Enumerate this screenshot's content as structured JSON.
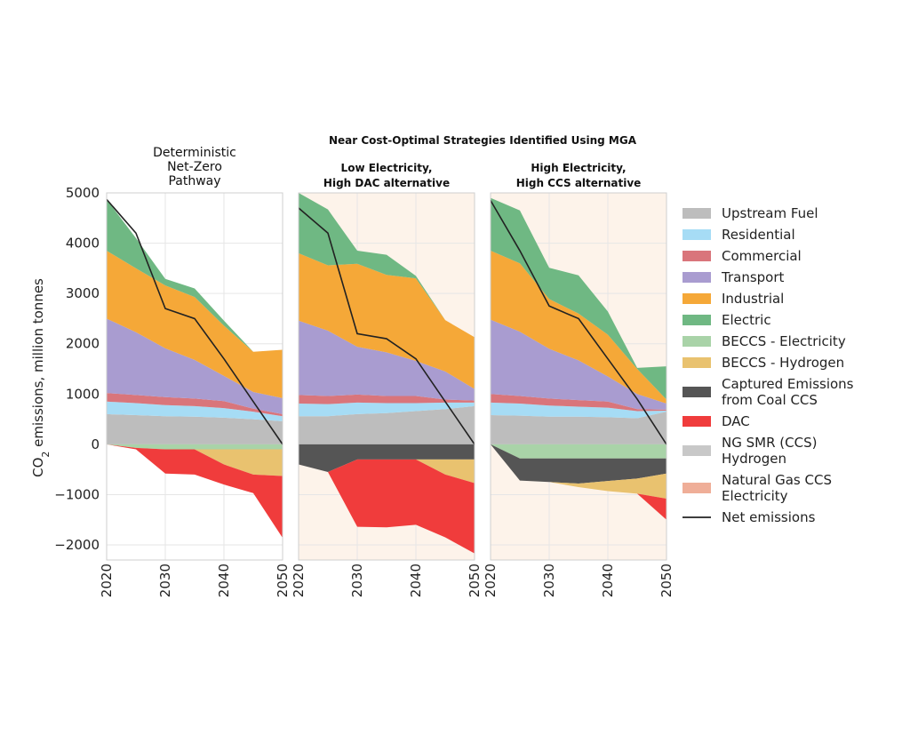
{
  "chart_data": {
    "type": "area",
    "supertitle": "Near Cost-Optimal Strategies Identified Using MGA",
    "ylabel": "CO2 emissions, million tonnes",
    "ylim": [
      -2300,
      5000
    ],
    "yticks": [
      5000,
      4000,
      3000,
      2000,
      1000,
      0,
      -1000,
      -2000
    ],
    "ytick_labels": [
      "5000",
      "4000",
      "3000",
      "2000",
      "1000",
      "0",
      "−1000",
      "−2000"
    ],
    "x": [
      2020,
      2025,
      2030,
      2035,
      2040,
      2045,
      2050
    ],
    "xticks": [
      2020,
      2030,
      2040,
      2050
    ],
    "xtick_labels": [
      "2020",
      "2030",
      "2040",
      "2050"
    ],
    "grid": true,
    "legend_position": "right",
    "colors": {
      "Upstream Fuel": "#bdbdbd",
      "Residential": "#a6dcf5",
      "Commercial": "#d9757b",
      "Transport": "#a99cd0",
      "Industrial": "#f5a838",
      "Electric": "#6fb883",
      "BECCS - Electricity": "#a9d3a8",
      "BECCS - Hydrogen": "#e9c26f",
      "Captured Emissions from Coal CCS": "#555555",
      "DAC": "#f03c3c",
      "NG SMR (CCS) Hydrogen": "#c8c8c8",
      "Natural Gas CCS Electricity": "#efae98",
      "Net emissions": "#222222"
    },
    "legend": [
      {
        "name": "Upstream Fuel",
        "lines": [
          "Upstream Fuel"
        ],
        "kind": "patch"
      },
      {
        "name": "Residential",
        "lines": [
          "Residential"
        ],
        "kind": "patch"
      },
      {
        "name": "Commercial",
        "lines": [
          "Commercial"
        ],
        "kind": "patch"
      },
      {
        "name": "Transport",
        "lines": [
          "Transport"
        ],
        "kind": "patch"
      },
      {
        "name": "Industrial",
        "lines": [
          "Industrial"
        ],
        "kind": "patch"
      },
      {
        "name": "Electric",
        "lines": [
          "Electric"
        ],
        "kind": "patch"
      },
      {
        "name": "BECCS - Electricity",
        "lines": [
          "BECCS - Electricity"
        ],
        "kind": "patch"
      },
      {
        "name": "BECCS - Hydrogen",
        "lines": [
          "BECCS - Hydrogen"
        ],
        "kind": "patch"
      },
      {
        "name": "Captured Emissions from Coal CCS",
        "lines": [
          "Captured Emissions",
          "from Coal CCS"
        ],
        "kind": "patch"
      },
      {
        "name": "DAC",
        "lines": [
          "DAC"
        ],
        "kind": "patch"
      },
      {
        "name": "NG SMR (CCS) Hydrogen",
        "lines": [
          "NG SMR (CCS)",
          "Hydrogen"
        ],
        "kind": "patch"
      },
      {
        "name": "Natural Gas CCS Electricity",
        "lines": [
          "Natural Gas CCS",
          "Electricity"
        ],
        "kind": "patch"
      },
      {
        "name": "Net emissions",
        "lines": [
          "Net emissions"
        ],
        "kind": "line"
      }
    ],
    "panels": [
      {
        "title_lines": [
          "Deterministic",
          "Net-Zero",
          "Pathway"
        ],
        "background": "#ffffff",
        "positive": [
          {
            "name": "Upstream Fuel",
            "values": [
              600,
              580,
              560,
              550,
              530,
              500,
              460
            ]
          },
          {
            "name": "Residential",
            "values": [
              250,
              240,
              220,
              210,
              190,
              150,
              100
            ]
          },
          {
            "name": "Commercial",
            "values": [
              170,
              160,
              160,
              150,
              140,
              60,
              40
            ]
          },
          {
            "name": "Transport",
            "values": [
              1480,
              1250,
              970,
              770,
              500,
              330,
              320
            ]
          },
          {
            "name": "Industrial",
            "values": [
              1350,
              1270,
              1250,
              1250,
              1000,
              800,
              960
            ]
          },
          {
            "name": "Electric",
            "values": [
              1020,
              600,
              130,
              170,
              100,
              0,
              0
            ]
          }
        ],
        "negative": [
          {
            "name": "BECCS - Electricity",
            "values": [
              0,
              -70,
              -100,
              -100,
              -100,
              -100,
              -100
            ]
          },
          {
            "name": "BECCS - Hydrogen",
            "values": [
              0,
              0,
              0,
              0,
              -300,
              -500,
              -530
            ]
          },
          {
            "name": "DAC",
            "values": [
              0,
              -30,
              -480,
              -500,
              -400,
              -370,
              -1230
            ]
          }
        ],
        "net": [
          4870,
          4200,
          2700,
          2500,
          1700,
          850,
          0
        ]
      },
      {
        "title_lines": [
          "Low Electricity,",
          "High DAC alternative"
        ],
        "background": "#fdf3ea",
        "positive": [
          {
            "name": "Upstream Fuel",
            "values": [
              560,
              560,
              600,
              620,
              660,
              700,
              760
            ]
          },
          {
            "name": "Residential",
            "values": [
              250,
              240,
              230,
              200,
              160,
              130,
              70
            ]
          },
          {
            "name": "Commercial",
            "values": [
              170,
              160,
              160,
              140,
              140,
              60,
              40
            ]
          },
          {
            "name": "Transport",
            "values": [
              1480,
              1300,
              950,
              870,
              700,
              560,
              230
            ]
          },
          {
            "name": "Industrial",
            "values": [
              1340,
              1300,
              1650,
              1540,
              1640,
              1020,
              1030
            ]
          },
          {
            "name": "Electric",
            "values": [
              1200,
              1110,
              260,
              400,
              50,
              0,
              0
            ]
          }
        ],
        "negative": [
          {
            "name": "Captured Emissions from Coal CCS",
            "values": [
              -400,
              -550,
              -300,
              -300,
              -300,
              -300,
              -300
            ]
          },
          {
            "name": "BECCS - Hydrogen",
            "values": [
              0,
              0,
              0,
              0,
              0,
              -300,
              -470
            ]
          },
          {
            "name": "DAC",
            "values": [
              0,
              0,
              -1340,
              -1350,
              -1300,
              -1250,
              -1400
            ]
          }
        ],
        "net": [
          4700,
          4200,
          2200,
          2100,
          1700,
          850,
          0
        ]
      },
      {
        "title_lines": [
          "High Electricity,",
          "High CCS alternative"
        ],
        "background": "#fdf3ea",
        "positive": [
          {
            "name": "Upstream Fuel",
            "values": [
              580,
              570,
              550,
              550,
              540,
              520,
              650
            ]
          },
          {
            "name": "Residential",
            "values": [
              250,
              240,
              220,
              200,
              190,
              140,
              20
            ]
          },
          {
            "name": "Commercial",
            "values": [
              170,
              150,
              140,
              130,
              120,
              40,
              20
            ]
          },
          {
            "name": "Transport",
            "values": [
              1480,
              1280,
              990,
              790,
              500,
              300,
              120
            ]
          },
          {
            "name": "Industrial",
            "values": [
              1370,
              1360,
              990,
              930,
              830,
              500,
              80
            ]
          },
          {
            "name": "Electric",
            "values": [
              1050,
              1050,
              620,
              760,
              460,
              20,
              660
            ]
          }
        ],
        "negative": [
          {
            "name": "BECCS - Electricity",
            "values": [
              0,
              -280,
              -280,
              -280,
              -280,
              -280,
              -280
            ]
          },
          {
            "name": "Captured Emissions from Coal CCS",
            "values": [
              0,
              -440,
              -470,
              -500,
              -450,
              -400,
              -300
            ]
          },
          {
            "name": "BECCS - Hydrogen",
            "values": [
              0,
              0,
              0,
              -70,
              -200,
              -300,
              -500
            ]
          },
          {
            "name": "DAC",
            "values": [
              0,
              0,
              0,
              0,
              0,
              0,
              -420
            ]
          }
        ],
        "net": [
          4850,
          3850,
          2750,
          2500,
          1700,
          900,
          0
        ]
      }
    ]
  }
}
